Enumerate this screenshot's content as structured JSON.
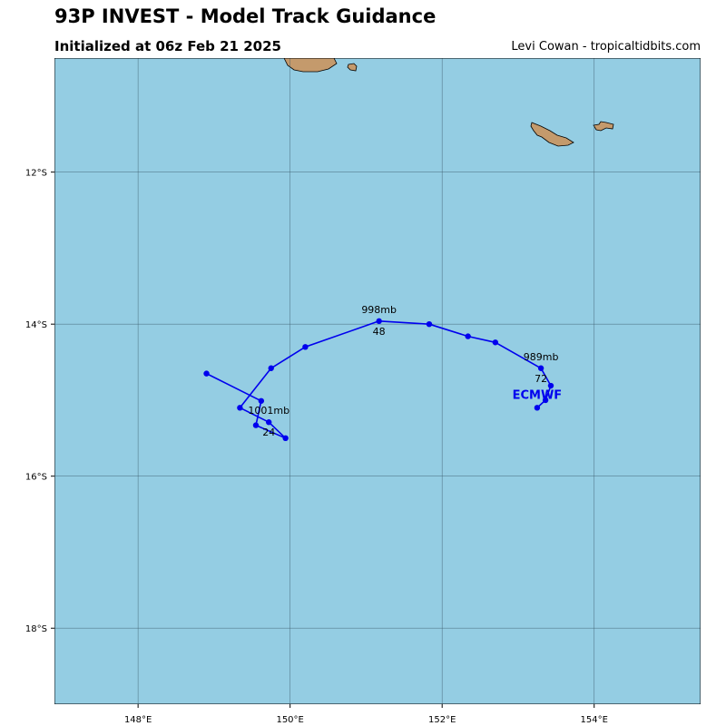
{
  "header": {
    "title": "93P INVEST - Model Track Guidance",
    "subtitle": "Initialized at 06z Feb 21 2025",
    "credit": "Levi Cowan - tropicaltidbits.com"
  },
  "colors": {
    "ocean": "#94cde3",
    "land": "#c49a6c",
    "grid": "#3a5a6a",
    "track": "#0000ee"
  },
  "chart_data": {
    "type": "map-track",
    "lon_range": [
      146.9,
      155.4
    ],
    "lat_range": [
      -19.0,
      -10.5
    ],
    "lon_ticks": [
      {
        "value": 148,
        "label": "148°E"
      },
      {
        "value": 150,
        "label": "150°E"
      },
      {
        "value": 152,
        "label": "152°E"
      },
      {
        "value": 154,
        "label": "154°E"
      }
    ],
    "lat_ticks": [
      {
        "value": -12,
        "label": "12°S"
      },
      {
        "value": -14,
        "label": "14°S"
      },
      {
        "value": -16,
        "label": "16°S"
      },
      {
        "value": -18,
        "label": "18°S"
      }
    ],
    "grid": true,
    "series": [
      {
        "name": "ECMWF",
        "points": [
          {
            "lon": 148.9,
            "lat": -14.65
          },
          {
            "lon": 149.62,
            "lat": -15.01
          },
          {
            "lon": 149.55,
            "lat": -15.33
          },
          {
            "lon": 149.94,
            "lat": -15.5
          },
          {
            "lon": 149.72,
            "lat": -15.29
          },
          {
            "lon": 149.34,
            "lat": -15.1
          },
          {
            "lon": 149.75,
            "lat": -14.58
          },
          {
            "lon": 150.2,
            "lat": -14.3
          },
          {
            "lon": 151.17,
            "lat": -13.96
          },
          {
            "lon": 151.83,
            "lat": -14.0
          },
          {
            "lon": 152.34,
            "lat": -14.16
          },
          {
            "lon": 152.7,
            "lat": -14.24
          },
          {
            "lon": 153.3,
            "lat": -14.58
          },
          {
            "lon": 153.43,
            "lat": -14.81
          },
          {
            "lon": 153.36,
            "lat": -15.0
          },
          {
            "lon": 153.25,
            "lat": -15.1
          }
        ],
        "annotations": [
          {
            "lon": 149.72,
            "lat": -15.29,
            "pressure": "1001mb",
            "hour": "24"
          },
          {
            "lon": 151.17,
            "lat": -13.96,
            "pressure": "998mb",
            "hour": "48"
          },
          {
            "lon": 153.3,
            "lat": -14.58,
            "pressure": "989mb",
            "hour": "72"
          }
        ],
        "end_label": {
          "lon": 153.25,
          "lat": -15.1
        }
      }
    ]
  }
}
